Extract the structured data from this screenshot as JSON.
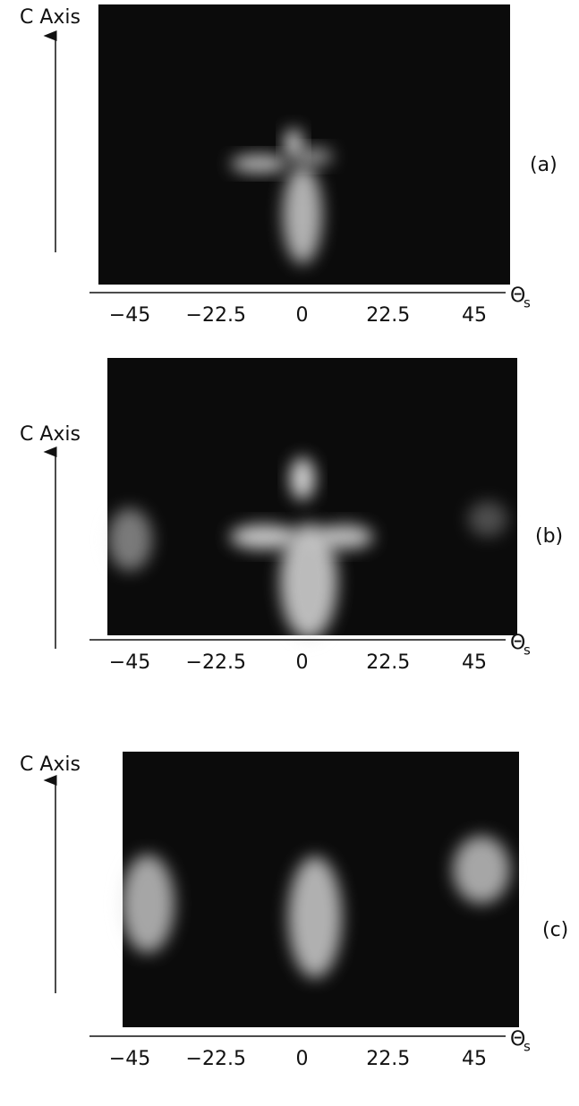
{
  "panels": [
    {
      "label": "(a)",
      "y_axis_label": "C Axis",
      "x_axis_symbol": "Θ",
      "x_axis_subscript": "s",
      "ticks": [
        "−45",
        "−22.5",
        "0",
        "22.5",
        "45"
      ]
    },
    {
      "label": "(b)",
      "y_axis_label": "C Axis",
      "x_axis_symbol": "Θ",
      "x_axis_subscript": "s",
      "ticks": [
        "−45",
        "−22.5",
        "0",
        "22.5",
        "45"
      ]
    },
    {
      "label": "(c)",
      "y_axis_label": "C Axis",
      "x_axis_symbol": "Θ",
      "x_axis_subscript": "s",
      "ticks": [
        "−45",
        "−22.5",
        "0",
        "22.5",
        "45"
      ]
    }
  ]
}
